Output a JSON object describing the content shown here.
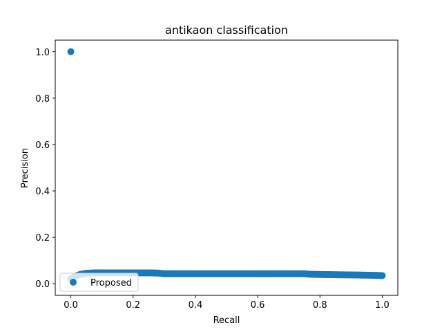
{
  "chart_data": {
    "type": "scatter",
    "title": "antikaon classification",
    "xlabel": "Recall",
    "ylabel": "Precision",
    "xlim": [
      -0.05,
      1.05
    ],
    "ylim": [
      -0.05,
      1.05
    ],
    "xticks": [
      0.0,
      0.2,
      0.4,
      0.6,
      0.8,
      1.0
    ],
    "xtick_labels": [
      "0.0",
      "0.2",
      "0.4",
      "0.6",
      "0.8",
      "1.0"
    ],
    "yticks": [
      0.0,
      0.2,
      0.4,
      0.6,
      0.8,
      1.0
    ],
    "ytick_labels": [
      "0.0",
      "0.2",
      "0.4",
      "0.6",
      "0.8",
      "1.0"
    ],
    "grid": false,
    "legend_position": "lower-left",
    "series": [
      {
        "name": "Proposed",
        "color": "#1f77b4",
        "x": [
          0.0,
          0.0,
          0.005,
          0.01,
          0.02,
          0.03,
          0.05,
          0.08,
          0.1,
          0.15,
          0.2,
          0.25,
          0.28,
          0.3,
          0.35,
          0.4,
          0.45,
          0.5,
          0.55,
          0.6,
          0.65,
          0.7,
          0.75,
          0.77,
          0.8,
          0.85,
          0.9,
          0.95,
          0.98,
          1.0
        ],
        "y": [
          1.0,
          0.02,
          0.025,
          0.03,
          0.035,
          0.04,
          0.045,
          0.047,
          0.047,
          0.047,
          0.047,
          0.047,
          0.046,
          0.043,
          0.043,
          0.043,
          0.043,
          0.043,
          0.043,
          0.043,
          0.043,
          0.043,
          0.043,
          0.041,
          0.04,
          0.039,
          0.038,
          0.037,
          0.036,
          0.035
        ]
      }
    ]
  }
}
